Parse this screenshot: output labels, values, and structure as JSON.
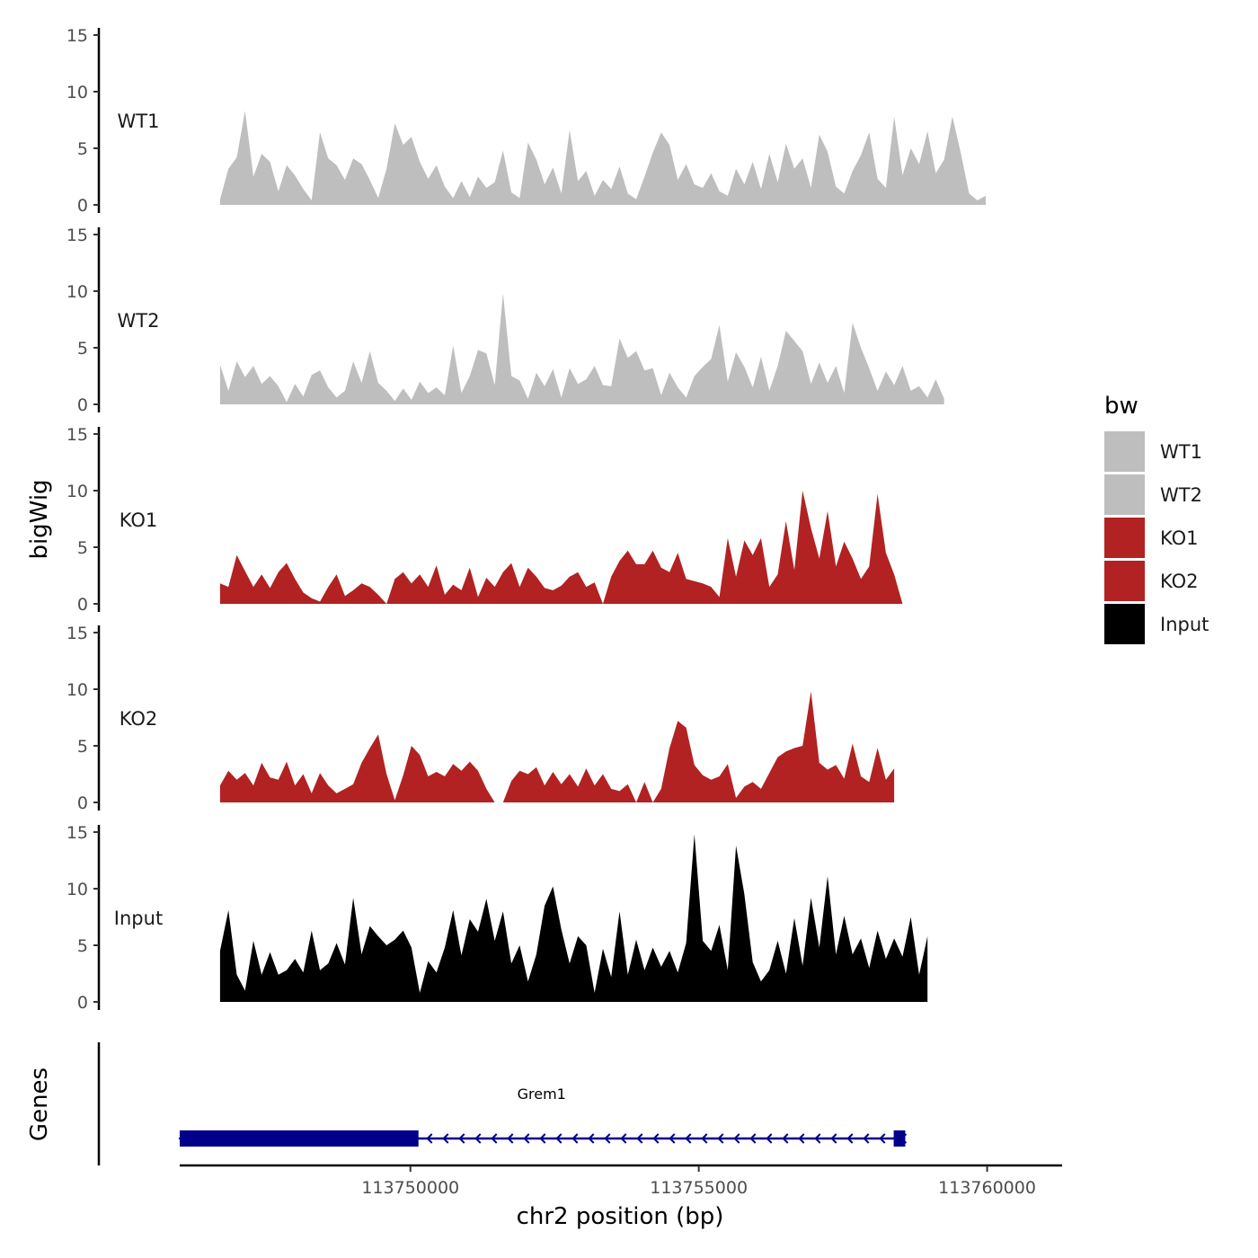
{
  "chart_data": {
    "type": "area",
    "title": "",
    "ylabel": "bigWig",
    "xlabel": "chr2 position (bp)",
    "gene_panel_label": "Genes",
    "xlim": [
      113746000,
      113761300
    ],
    "x_ticks": [
      113750000,
      113755000,
      113760000
    ],
    "x_tick_labels": [
      "113750000",
      "113755000",
      "113760000"
    ],
    "ylim": [
      0,
      15
    ],
    "y_ticks": [
      0,
      5,
      10,
      15
    ],
    "y_tick_labels": [
      "0",
      "5",
      "10",
      "15"
    ],
    "x_start": 113746700,
    "x_step": 144.3,
    "series": [
      {
        "name": "WT1",
        "color": "#BEBEBE",
        "values": [
          0.5,
          3.2,
          4.2,
          8.3,
          2.5,
          4.5,
          3.8,
          1.2,
          3.5,
          2.6,
          1.4,
          0.4,
          6.4,
          4.1,
          3.5,
          2.2,
          4.1,
          3.6,
          2.2,
          0.6,
          3.2,
          7.2,
          5.3,
          6.0,
          3.8,
          2.3,
          3.5,
          1.6,
          0.6,
          2.1,
          0.7,
          2.5,
          1.5,
          2.0,
          4.8,
          1.1,
          0.6,
          5.5,
          4.0,
          1.8,
          3.3,
          1.0,
          6.6,
          2.1,
          3.0,
          0.8,
          2.2,
          1.4,
          3.4,
          1.0,
          0.5,
          2.5,
          4.6,
          6.4,
          5.3,
          2.2,
          3.6,
          1.8,
          1.5,
          2.8,
          1.2,
          0.8,
          3.2,
          1.8,
          3.8,
          1.4,
          4.5,
          2.0,
          5.4,
          3.2,
          4.1,
          1.5,
          6.2,
          4.7,
          1.6,
          1.0,
          3.0,
          4.4,
          6.4,
          2.3,
          1.5,
          7.8,
          2.6,
          5.0,
          3.6,
          6.5,
          2.8,
          4.0,
          7.8,
          4.6,
          1.0,
          0.4,
          0.8
        ]
      },
      {
        "name": "WT2",
        "color": "#BEBEBE",
        "values": [
          3.5,
          1.2,
          3.8,
          2.4,
          3.4,
          1.8,
          2.5,
          1.6,
          0.2,
          1.8,
          0.7,
          2.6,
          3.0,
          1.5,
          0.6,
          1.2,
          3.8,
          1.9,
          4.7,
          1.9,
          1.2,
          0.3,
          1.4,
          0.4,
          2.0,
          1.0,
          1.5,
          0.8,
          5.2,
          1.0,
          2.5,
          4.8,
          4.5,
          1.7,
          9.8,
          2.5,
          2.1,
          0.5,
          2.8,
          1.6,
          3.1,
          0.6,
          3.2,
          1.8,
          2.2,
          3.4,
          1.7,
          1.6,
          5.8,
          4.1,
          4.7,
          3.0,
          3.2,
          0.8,
          2.8,
          1.5,
          0.6,
          2.5,
          3.3,
          4.0,
          7.0,
          2.0,
          4.6,
          3.3,
          1.5,
          4.2,
          1.2,
          3.4,
          6.5,
          5.6,
          4.7,
          1.8,
          3.7,
          1.9,
          3.4,
          1.0,
          7.2,
          5.0,
          3.2,
          1.2,
          2.9,
          1.7,
          3.4,
          1.2,
          1.6,
          0.6,
          2.2,
          0.5
        ]
      },
      {
        "name": "KO1",
        "color": "#B22222",
        "values": [
          1.8,
          1.5,
          4.3,
          2.9,
          1.5,
          2.6,
          1.4,
          2.8,
          3.6,
          2.2,
          1.0,
          0.5,
          0.2,
          1.5,
          2.6,
          0.7,
          1.2,
          1.8,
          1.5,
          0.8,
          0.0,
          2.2,
          2.8,
          1.8,
          2.6,
          1.5,
          3.4,
          0.8,
          1.7,
          1.2,
          3.2,
          0.6,
          2.3,
          1.5,
          2.8,
          3.6,
          1.5,
          3.2,
          2.4,
          1.4,
          1.2,
          1.6,
          2.4,
          2.8,
          1.5,
          1.9,
          0.0,
          2.4,
          3.8,
          4.7,
          3.5,
          3.5,
          4.7,
          3.2,
          2.8,
          4.5,
          2.2,
          2.0,
          1.8,
          1.5,
          0.6,
          5.8,
          2.4,
          5.6,
          4.3,
          5.8,
          1.5,
          2.6,
          7.3,
          3.0,
          10.0,
          6.7,
          4.0,
          8.2,
          3.3,
          5.5,
          4.0,
          2.2,
          3.3,
          9.7,
          4.5,
          2.6,
          0.0,
          0.0
        ]
      },
      {
        "name": "KO2",
        "color": "#B22222",
        "values": [
          1.5,
          2.8,
          2.0,
          2.6,
          1.5,
          3.5,
          2.2,
          2.0,
          3.6,
          1.5,
          2.5,
          0.8,
          2.6,
          1.5,
          0.8,
          1.2,
          1.6,
          3.5,
          4.8,
          6.0,
          2.5,
          0.2,
          2.4,
          5.0,
          4.2,
          2.3,
          2.7,
          2.3,
          3.4,
          2.8,
          3.6,
          2.8,
          1.2,
          0.0,
          0.0,
          1.9,
          2.8,
          2.5,
          3.1,
          1.5,
          2.7,
          1.6,
          2.5,
          1.4,
          3.0,
          1.5,
          2.5,
          1.2,
          1.0,
          1.6,
          0.0,
          1.8,
          0.0,
          1.2,
          4.8,
          7.2,
          6.6,
          3.3,
          2.4,
          2.0,
          2.3,
          3.4,
          0.4,
          1.4,
          1.8,
          1.2,
          2.6,
          4.0,
          4.5,
          4.8,
          5.0,
          9.8,
          3.5,
          2.9,
          3.3,
          2.1,
          5.2,
          2.3,
          1.8,
          4.8,
          2.0,
          3.0
        ]
      },
      {
        "name": "Input",
        "color": "#000000",
        "values": [
          4.5,
          8.1,
          2.4,
          1.0,
          5.4,
          2.4,
          4.4,
          2.4,
          2.8,
          3.8,
          2.6,
          6.3,
          2.8,
          3.4,
          5.2,
          3.3,
          9.2,
          4.2,
          6.7,
          5.8,
          5.0,
          5.5,
          6.3,
          4.8,
          0.8,
          3.6,
          2.6,
          4.8,
          8.1,
          4.1,
          7.3,
          6.2,
          9.1,
          5.4,
          8.0,
          3.4,
          5.0,
          1.8,
          4.2,
          8.5,
          10.2,
          6.4,
          3.4,
          5.8,
          5.0,
          0.8,
          4.7,
          2.2,
          8.0,
          2.4,
          5.5,
          2.8,
          4.8,
          3.1,
          4.5,
          2.6,
          5.2,
          14.8,
          5.4,
          4.5,
          6.8,
          2.8,
          13.8,
          9.5,
          3.5,
          1.8,
          2.8,
          5.4,
          2.5,
          7.4,
          3.2,
          9.2,
          4.8,
          11.1,
          4.2,
          7.6,
          4.2,
          5.6,
          3.0,
          6.3,
          3.8,
          5.6,
          4.0,
          7.5,
          2.4,
          5.8
        ]
      }
    ],
    "legend": {
      "title": "bw",
      "position": "right",
      "entries": [
        "WT1",
        "WT2",
        "KO1",
        "KO2",
        "Input"
      ]
    },
    "genes": [
      {
        "name": "Grem1",
        "start": 113746000,
        "end": 113758580,
        "thick_start": 113746000,
        "thick_end": 113750140,
        "thick2_start": 113758380,
        "thick2_end": 113758580,
        "strand": "-",
        "color": "#00008B"
      }
    ]
  }
}
